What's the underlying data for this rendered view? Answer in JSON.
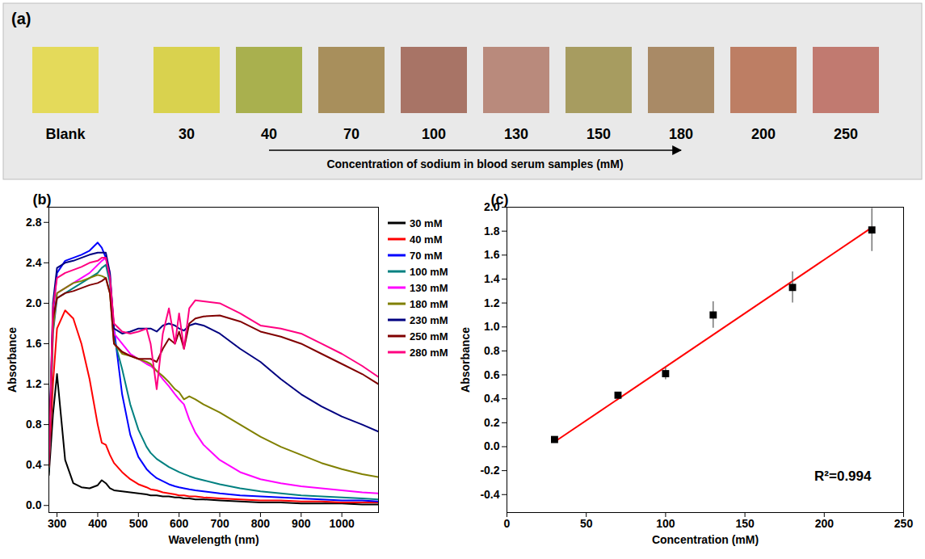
{
  "chart_data": [
    {
      "type": "swatch",
      "panel_label": "(a)",
      "categories": [
        "Blank",
        "30",
        "40",
        "70",
        "100",
        "130",
        "150",
        "180",
        "200",
        "250"
      ],
      "colors": [
        "#e4da5a",
        "#d9d24e",
        "#a9b04e",
        "#a88f5c",
        "#a87466",
        "#b98a7c",
        "#a79c60",
        "#a98a66",
        "#bd7e64",
        "#c17a70"
      ],
      "xlabel": "Concentration of sodium in blood serum samples (mM)"
    },
    {
      "type": "line",
      "panel_label": "(b)",
      "xlabel": "Wavelength (nm)",
      "ylabel": "Absorbance",
      "x": [
        280,
        290,
        300,
        320,
        340,
        360,
        380,
        400,
        410,
        420,
        430,
        440,
        460,
        480,
        500,
        520,
        530,
        545,
        560,
        575,
        590,
        600,
        612,
        625,
        640,
        660,
        700,
        750,
        800,
        850,
        900,
        950,
        1000,
        1050,
        1090
      ],
      "xlim": [
        280,
        1090
      ],
      "xticks": [
        300,
        400,
        500,
        600,
        700,
        800,
        900,
        1000
      ],
      "ylim": [
        -0.07,
        2.95
      ],
      "yticks": [
        {
          "value": 0,
          "label": "0.0"
        },
        0.4,
        0.8,
        1.2,
        1.6,
        {
          "value": 2,
          "label": "2.0"
        },
        2.4,
        2.8
      ],
      "grid": false,
      "legend": "right",
      "series": [
        {
          "name": "30 mM",
          "color": "#000000",
          "values": [
            0.3,
            0.9,
            1.3,
            0.45,
            0.22,
            0.18,
            0.17,
            0.2,
            0.25,
            0.22,
            0.17,
            0.15,
            0.14,
            0.13,
            0.12,
            0.11,
            0.1,
            0.1,
            0.09,
            0.09,
            0.08,
            0.08,
            0.07,
            0.07,
            0.06,
            0.06,
            0.05,
            0.04,
            0.03,
            0.03,
            0.02,
            0.02,
            0.02,
            0.01,
            0.01
          ]
        },
        {
          "name": "40 mM",
          "color": "#ff0000",
          "values": [
            0.4,
            1.2,
            1.75,
            1.93,
            1.85,
            1.6,
            1.25,
            0.8,
            0.62,
            0.6,
            0.5,
            0.42,
            0.33,
            0.26,
            0.21,
            0.18,
            0.16,
            0.15,
            0.13,
            0.12,
            0.11,
            0.1,
            0.1,
            0.09,
            0.09,
            0.08,
            0.07,
            0.06,
            0.05,
            0.05,
            0.04,
            0.04,
            0.03,
            0.03,
            0.03
          ]
        },
        {
          "name": "70 mM",
          "color": "#0000ff",
          "values": [
            0.4,
            1.9,
            2.3,
            2.42,
            2.45,
            2.48,
            2.52,
            2.6,
            2.55,
            2.45,
            2.25,
            1.75,
            1.1,
            0.7,
            0.48,
            0.36,
            0.32,
            0.27,
            0.24,
            0.21,
            0.19,
            0.18,
            0.17,
            0.16,
            0.15,
            0.14,
            0.12,
            0.1,
            0.09,
            0.08,
            0.07,
            0.06,
            0.05,
            0.05,
            0.04
          ]
        },
        {
          "name": "100 mM",
          "color": "#008080",
          "values": [
            0.35,
            1.7,
            2.05,
            2.1,
            2.15,
            2.2,
            2.25,
            2.3,
            2.35,
            2.38,
            2.2,
            1.65,
            1.35,
            1.0,
            0.75,
            0.58,
            0.52,
            0.46,
            0.42,
            0.38,
            0.35,
            0.33,
            0.31,
            0.29,
            0.27,
            0.25,
            0.21,
            0.17,
            0.14,
            0.12,
            0.1,
            0.09,
            0.08,
            0.07,
            0.06
          ]
        },
        {
          "name": "130 mM",
          "color": "#ff00ff",
          "values": [
            0.38,
            1.75,
            2.1,
            2.15,
            2.2,
            2.25,
            2.3,
            2.38,
            2.42,
            2.45,
            2.3,
            1.7,
            1.6,
            1.5,
            1.45,
            1.4,
            1.38,
            1.33,
            1.25,
            1.18,
            1.1,
            1.05,
            1.0,
            0.85,
            0.72,
            0.6,
            0.45,
            0.33,
            0.26,
            0.22,
            0.19,
            0.17,
            0.15,
            0.13,
            0.12
          ]
        },
        {
          "name": "180 mM",
          "color": "#808000",
          "values": [
            0.38,
            1.75,
            2.1,
            2.15,
            2.2,
            2.22,
            2.25,
            2.28,
            2.27,
            2.25,
            2.1,
            1.6,
            1.5,
            1.48,
            1.45,
            1.42,
            1.4,
            1.33,
            1.28,
            1.22,
            1.15,
            1.12,
            1.05,
            1.08,
            1.05,
            1.0,
            0.92,
            0.8,
            0.68,
            0.58,
            0.5,
            0.42,
            0.36,
            0.31,
            0.28
          ]
        },
        {
          "name": "230 mM",
          "color": "#000080",
          "values": [
            0.45,
            2.0,
            2.35,
            2.4,
            2.42,
            2.45,
            2.48,
            2.5,
            2.5,
            2.5,
            2.3,
            1.75,
            1.7,
            1.72,
            1.75,
            1.75,
            1.75,
            1.72,
            1.78,
            1.8,
            1.78,
            1.75,
            1.73,
            1.78,
            1.8,
            1.78,
            1.7,
            1.55,
            1.42,
            1.25,
            1.1,
            0.98,
            0.88,
            0.8,
            0.73
          ]
        },
        {
          "name": "250 mM",
          "color": "#800000",
          "values": [
            0.4,
            1.85,
            2.05,
            2.1,
            2.12,
            2.15,
            2.18,
            2.2,
            2.22,
            2.25,
            2.1,
            1.6,
            1.52,
            1.48,
            1.45,
            1.45,
            1.45,
            1.42,
            1.55,
            1.65,
            1.6,
            1.72,
            1.55,
            1.8,
            1.85,
            1.87,
            1.88,
            1.82,
            1.72,
            1.67,
            1.6,
            1.5,
            1.4,
            1.3,
            1.2
          ]
        },
        {
          "name": "280 mM",
          "color": "#ff0080",
          "values": [
            0.42,
            1.95,
            2.25,
            2.3,
            2.33,
            2.36,
            2.4,
            2.42,
            2.45,
            2.45,
            2.25,
            1.8,
            1.72,
            1.7,
            1.72,
            1.75,
            1.6,
            1.15,
            1.7,
            1.95,
            1.6,
            1.9,
            1.55,
            1.95,
            2.03,
            2.02,
            2.0,
            1.9,
            1.78,
            1.75,
            1.7,
            1.6,
            1.5,
            1.38,
            1.27
          ]
        }
      ]
    },
    {
      "type": "scatter",
      "panel_label": "(c)",
      "xlabel": "Concentration (mM)",
      "ylabel": "Absorbance",
      "x": [
        30,
        70,
        100,
        130,
        180,
        230
      ],
      "values": [
        0.06,
        0.43,
        0.61,
        1.1,
        1.33,
        1.81
      ],
      "errors": [
        0.02,
        0.02,
        0.05,
        0.11,
        0.13,
        0.18
      ],
      "color": "#000000",
      "marker": "square",
      "fit": {
        "type": "line",
        "color": "#ff0000",
        "x": [
          30,
          230
        ],
        "values": [
          0.04,
          1.83
        ]
      },
      "annotation": "R²=0.994",
      "xlim": [
        0,
        250
      ],
      "xticks": [
        0,
        50,
        100,
        150,
        200,
        250
      ],
      "ylim": [
        -0.55,
        2.0
      ],
      "yticks": [
        -0.4,
        -0.2,
        {
          "value": 0,
          "label": "0.0"
        },
        0.2,
        0.4,
        0.6,
        0.8,
        {
          "value": 1,
          "label": "1.0"
        },
        1.2,
        1.4,
        1.6,
        1.8,
        {
          "value": 2,
          "label": "2.0"
        }
      ],
      "grid": false
    }
  ]
}
